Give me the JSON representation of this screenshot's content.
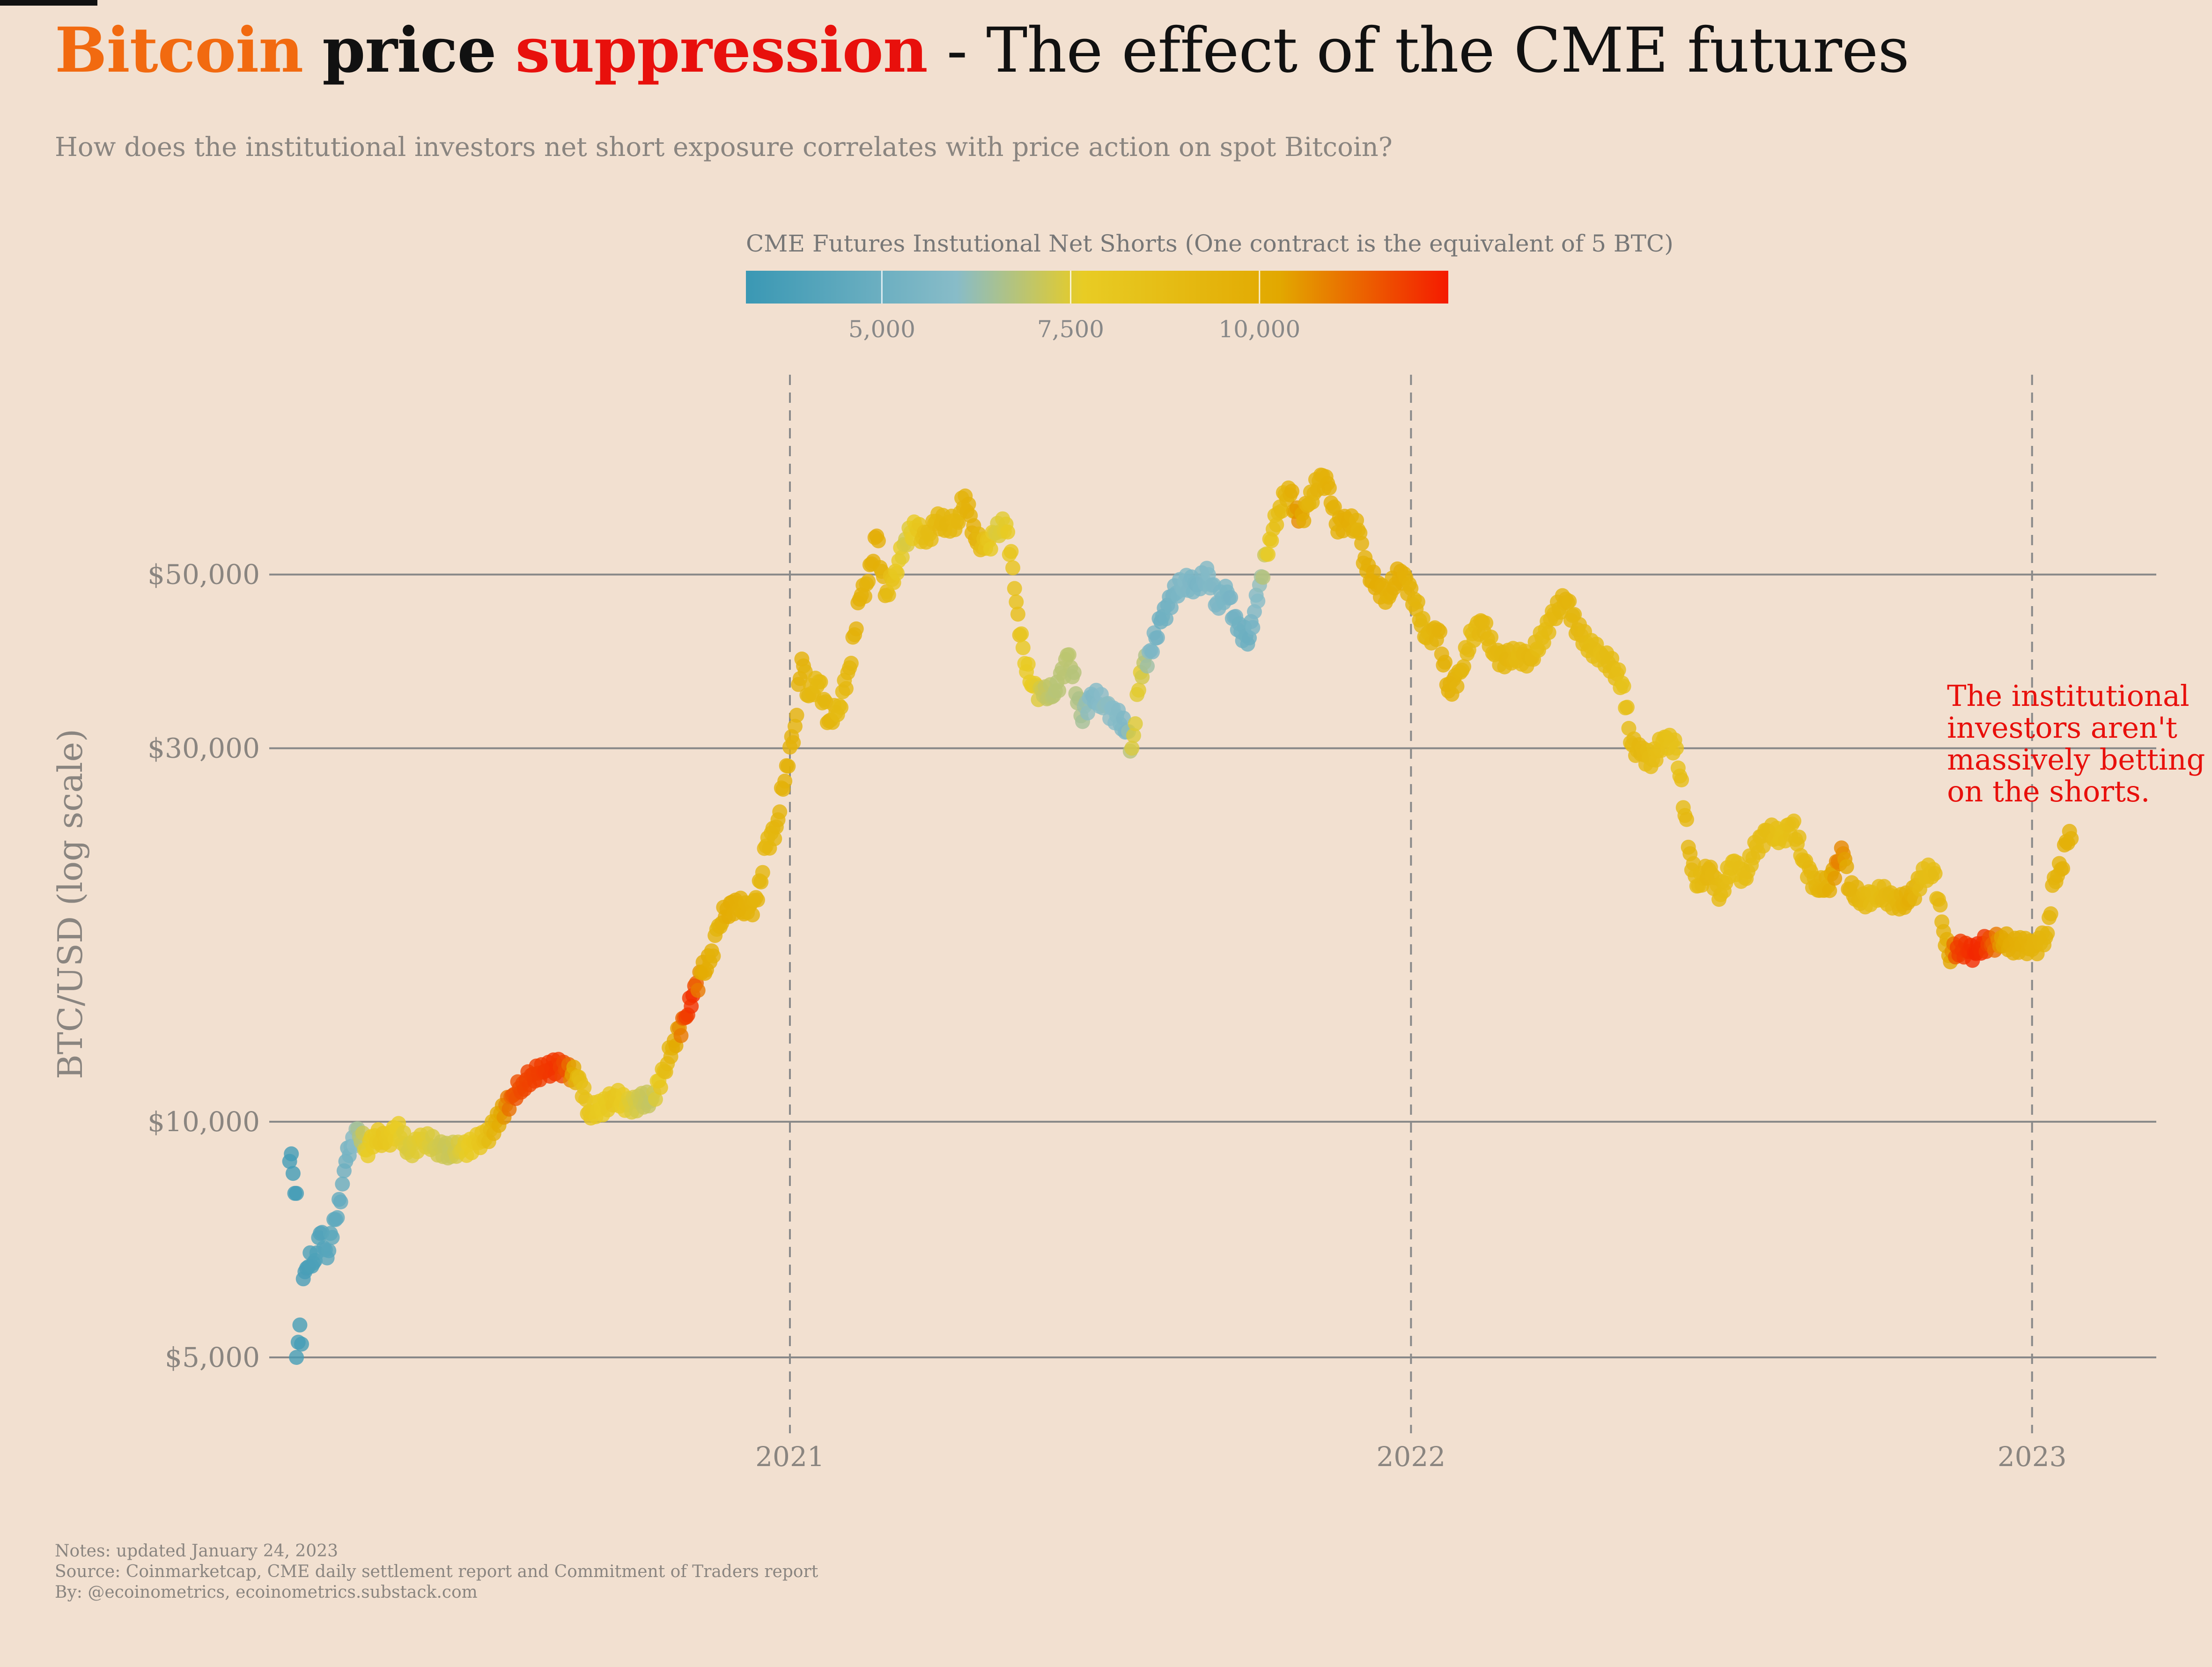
{
  "title": {
    "part1": "Bitcoin",
    "part2": "price",
    "part3": "suppression",
    "part4": "- The effect of the CME futures"
  },
  "subtitle": "How does the institutional investors net short exposure correlates with price action on spot Bitcoin?",
  "notes": [
    "Notes: updated January 24, 2023",
    "Source: Coinmarketcap, CME daily settlement report and Commitment of Traders report",
    "By: @ecoinometrics, ecoinometrics.substack.com"
  ],
  "colors": {
    "background": "#f2e0d0",
    "title_bitcoin": "#f26a10",
    "title_suppression": "#e8100c",
    "annotation": "#e8100c",
    "gridline": "#888888",
    "scale_low": "#3a98b4",
    "scale_light": "#88bcc8",
    "scale_mid": "#e8cc24",
    "scale_gold": "#e2a800",
    "scale_high": "#f51a00"
  },
  "chart_data": {
    "type": "scatter",
    "ylabel": "BTC/USD (log scale)",
    "y_scale": "log",
    "ylim": [
      4000,
      90000
    ],
    "xlim": [
      "2020-03-01",
      "2023-03-15"
    ],
    "x_ticks": [
      {
        "date": "2021-01-01",
        "label": "2021"
      },
      {
        "date": "2022-01-01",
        "label": "2022"
      },
      {
        "date": "2023-01-01",
        "label": "2023"
      }
    ],
    "y_ticks": [
      {
        "value": 5000,
        "label": "$5,000"
      },
      {
        "value": 10000,
        "label": "$10,000"
      },
      {
        "value": 30000,
        "label": "$30,000"
      },
      {
        "value": 50000,
        "label": "$50,000"
      }
    ],
    "vertical_dashed_lines_at": [
      "2021-01-01",
      "2022-01-01",
      "2023-01-01"
    ],
    "colorbar": {
      "title": "CME Futures Instutional Net Shorts (One contract is the equivalent of 5 BTC)",
      "range": [
        3200,
        12500
      ],
      "ticks": [
        {
          "value": 5000,
          "label": "5,000"
        },
        {
          "value": 7500,
          "label": "7,500"
        },
        {
          "value": 10000,
          "label": "10,000"
        }
      ]
    },
    "annotation": {
      "lines": [
        "The institutional",
        "investors aren't",
        "massively betting",
        "on the shorts."
      ],
      "date": "2022-11-01",
      "value": 31500
    },
    "points": [
      {
        "date": "2020-03-13",
        "price": 8900,
        "shorts": 3500
      },
      {
        "date": "2020-03-14",
        "price": 9100,
        "shorts": 3500
      },
      {
        "date": "2020-03-16",
        "price": 8100,
        "shorts": 3500
      },
      {
        "date": "2020-03-17",
        "price": 8100,
        "shorts": 3500
      },
      {
        "date": "2020-03-17",
        "price": 5000,
        "shorts": 3600
      },
      {
        "date": "2020-03-19",
        "price": 5500,
        "shorts": 3600
      },
      {
        "date": "2020-03-20",
        "price": 5200,
        "shorts": 3600
      },
      {
        "date": "2020-03-21",
        "price": 6300,
        "shorts": 3700
      },
      {
        "date": "2020-03-23",
        "price": 6500,
        "shorts": 3700
      },
      {
        "date": "2020-03-25",
        "price": 6800,
        "shorts": 3800
      },
      {
        "date": "2020-03-27",
        "price": 6600,
        "shorts": 3800
      },
      {
        "date": "2020-03-29",
        "price": 6800,
        "shorts": 3900
      },
      {
        "date": "2020-03-31",
        "price": 7200,
        "shorts": 4000
      },
      {
        "date": "2020-04-02",
        "price": 6900,
        "shorts": 4100
      },
      {
        "date": "2020-04-04",
        "price": 6700,
        "shorts": 4200
      },
      {
        "date": "2020-04-06",
        "price": 7200,
        "shorts": 4300
      },
      {
        "date": "2020-04-09",
        "price": 7500,
        "shorts": 4500
      },
      {
        "date": "2020-04-12",
        "price": 7900,
        "shorts": 4700
      },
      {
        "date": "2020-04-15",
        "price": 8900,
        "shorts": 5000
      },
      {
        "date": "2020-04-18",
        "price": 9300,
        "shorts": 5500
      },
      {
        "date": "2020-04-22",
        "price": 9800,
        "shorts": 6500
      },
      {
        "date": "2020-04-27",
        "price": 9200,
        "shorts": 7600
      },
      {
        "date": "2020-05-02",
        "price": 9600,
        "shorts": 7900
      },
      {
        "date": "2020-05-08",
        "price": 9400,
        "shorts": 8100
      },
      {
        "date": "2020-05-15",
        "price": 9800,
        "shorts": 7700
      },
      {
        "date": "2020-05-22",
        "price": 9200,
        "shorts": 7400
      },
      {
        "date": "2020-05-30",
        "price": 9500,
        "shorts": 7600
      },
      {
        "date": "2020-06-07",
        "price": 9300,
        "shorts": 7300
      },
      {
        "date": "2020-06-15",
        "price": 9200,
        "shorts": 7100
      },
      {
        "date": "2020-06-22",
        "price": 9200,
        "shorts": 7500
      },
      {
        "date": "2020-06-30",
        "price": 9400,
        "shorts": 7900
      },
      {
        "date": "2020-07-06",
        "price": 9500,
        "shorts": 8500
      },
      {
        "date": "2020-07-22",
        "price": 10800,
        "shorts": 11500
      },
      {
        "date": "2020-07-28",
        "price": 11200,
        "shorts": 11800
      },
      {
        "date": "2020-08-03",
        "price": 11500,
        "shorts": 11900
      },
      {
        "date": "2020-08-10",
        "price": 11600,
        "shorts": 12000
      },
      {
        "date": "2020-08-17",
        "price": 11800,
        "shorts": 12100
      },
      {
        "date": "2020-08-23",
        "price": 11600,
        "shorts": 11600
      },
      {
        "date": "2020-08-30",
        "price": 11400,
        "shorts": 8900
      },
      {
        "date": "2020-09-05",
        "price": 10300,
        "shorts": 8200
      },
      {
        "date": "2020-09-12",
        "price": 10400,
        "shorts": 7800
      },
      {
        "date": "2020-09-20",
        "price": 10800,
        "shorts": 8100
      },
      {
        "date": "2020-09-27",
        "price": 10500,
        "shorts": 7600
      },
      {
        "date": "2020-10-05",
        "price": 10600,
        "shorts": 7200
      },
      {
        "date": "2020-10-12",
        "price": 10700,
        "shorts": 7000
      },
      {
        "date": "2020-10-19",
        "price": 11600,
        "shorts": 8600
      },
      {
        "date": "2020-10-25",
        "price": 12700,
        "shorts": 9800
      },
      {
        "date": "2020-11-01",
        "price": 13600,
        "shorts": 11900
      },
      {
        "date": "2020-11-05",
        "price": 14500,
        "shorts": 12200
      },
      {
        "date": "2020-11-10",
        "price": 15500,
        "shorts": 10200
      },
      {
        "date": "2020-11-15",
        "price": 16000,
        "shorts": 9800
      },
      {
        "date": "2020-11-20",
        "price": 17800,
        "shorts": 9300
      },
      {
        "date": "2020-11-25",
        "price": 18700,
        "shorts": 10000
      },
      {
        "date": "2020-12-01",
        "price": 19000,
        "shorts": 9800
      },
      {
        "date": "2020-12-07",
        "price": 18500,
        "shorts": 9600
      },
      {
        "date": "2020-12-13",
        "price": 19200,
        "shorts": 9400
      },
      {
        "date": "2020-12-18",
        "price": 22500,
        "shorts": 9100
      },
      {
        "date": "2020-12-24",
        "price": 23800,
        "shorts": 9300
      },
      {
        "date": "2020-12-30",
        "price": 28500,
        "shorts": 9700
      },
      {
        "date": "2021-01-04",
        "price": 32000,
        "shorts": 9400
      },
      {
        "date": "2021-01-08",
        "price": 39000,
        "shorts": 9600
      },
      {
        "date": "2021-01-12",
        "price": 35000,
        "shorts": 9200
      },
      {
        "date": "2021-01-18",
        "price": 36500,
        "shorts": 9000
      },
      {
        "date": "2021-01-24",
        "price": 32500,
        "shorts": 9400
      },
      {
        "date": "2021-01-30",
        "price": 34000,
        "shorts": 8900
      },
      {
        "date": "2021-02-05",
        "price": 38000,
        "shorts": 9200
      },
      {
        "date": "2021-02-11",
        "price": 46500,
        "shorts": 9700
      },
      {
        "date": "2021-02-16",
        "price": 49000,
        "shorts": 9500
      },
      {
        "date": "2021-02-21",
        "price": 56000,
        "shorts": 9900
      },
      {
        "date": "2021-02-26",
        "price": 47000,
        "shorts": 9300
      },
      {
        "date": "2021-03-04",
        "price": 50500,
        "shorts": 8100
      },
      {
        "date": "2021-03-10",
        "price": 55500,
        "shorts": 7300
      },
      {
        "date": "2021-03-16",
        "price": 57500,
        "shorts": 7900
      },
      {
        "date": "2021-03-22",
        "price": 55000,
        "shorts": 8800
      },
      {
        "date": "2021-03-28",
        "price": 58500,
        "shorts": 9000
      },
      {
        "date": "2021-04-03",
        "price": 58000,
        "shorts": 9300
      },
      {
        "date": "2021-04-09",
        "price": 58500,
        "shorts": 9100
      },
      {
        "date": "2021-04-14",
        "price": 63000,
        "shorts": 9500
      },
      {
        "date": "2021-04-20",
        "price": 55500,
        "shorts": 9700
      },
      {
        "date": "2021-04-26",
        "price": 54000,
        "shorts": 8400
      },
      {
        "date": "2021-05-02",
        "price": 56500,
        "shorts": 7400
      },
      {
        "date": "2021-05-08",
        "price": 58000,
        "shorts": 7600
      },
      {
        "date": "2021-05-12",
        "price": 51000,
        "shorts": 8300
      },
      {
        "date": "2021-05-15",
        "price": 44500,
        "shorts": 8700
      },
      {
        "date": "2021-05-19",
        "price": 38500,
        "shorts": 7700
      },
      {
        "date": "2021-05-24",
        "price": 36000,
        "shorts": 7800
      },
      {
        "date": "2021-05-30",
        "price": 35000,
        "shorts": 7100
      },
      {
        "date": "2021-06-06",
        "price": 35500,
        "shorts": 6800
      },
      {
        "date": "2021-06-14",
        "price": 39500,
        "shorts": 6900
      },
      {
        "date": "2021-06-21",
        "price": 33000,
        "shorts": 6600
      },
      {
        "date": "2021-06-28",
        "price": 35000,
        "shorts": 5700
      },
      {
        "date": "2021-07-05",
        "price": 34000,
        "shorts": 6100
      },
      {
        "date": "2021-07-12",
        "price": 33000,
        "shorts": 5900
      },
      {
        "date": "2021-07-18",
        "price": 31500,
        "shorts": 5600
      },
      {
        "date": "2021-07-21",
        "price": 30000,
        "shorts": 7400
      },
      {
        "date": "2021-07-26",
        "price": 37500,
        "shorts": 7600
      },
      {
        "date": "2021-08-01",
        "price": 40000,
        "shorts": 5700
      },
      {
        "date": "2021-08-07",
        "price": 43500,
        "shorts": 5000
      },
      {
        "date": "2021-08-14",
        "price": 47000,
        "shorts": 5300
      },
      {
        "date": "2021-08-21",
        "price": 49000,
        "shorts": 5800
      },
      {
        "date": "2021-08-28",
        "price": 48500,
        "shorts": 5400
      },
      {
        "date": "2021-09-04",
        "price": 50000,
        "shorts": 5800
      },
      {
        "date": "2021-09-09",
        "price": 46000,
        "shorts": 5600
      },
      {
        "date": "2021-09-15",
        "price": 47500,
        "shorts": 5500
      },
      {
        "date": "2021-09-21",
        "price": 42500,
        "shorts": 5200
      },
      {
        "date": "2021-09-28",
        "price": 41500,
        "shorts": 5000
      },
      {
        "date": "2021-10-04",
        "price": 48500,
        "shorts": 6100
      },
      {
        "date": "2021-10-10",
        "price": 55500,
        "shorts": 8100
      },
      {
        "date": "2021-10-16",
        "price": 61000,
        "shorts": 8900
      },
      {
        "date": "2021-10-21",
        "price": 64500,
        "shorts": 9400
      },
      {
        "date": "2021-10-27",
        "price": 58500,
        "shorts": 10700
      },
      {
        "date": "2021-11-02",
        "price": 61500,
        "shorts": 9300
      },
      {
        "date": "2021-11-09",
        "price": 67000,
        "shorts": 9500
      },
      {
        "date": "2021-11-14",
        "price": 64500,
        "shorts": 9700
      },
      {
        "date": "2021-11-18",
        "price": 58000,
        "shorts": 9600
      },
      {
        "date": "2021-11-25",
        "price": 58500,
        "shorts": 9900
      },
      {
        "date": "2021-12-01",
        "price": 57000,
        "shorts": 9400
      },
      {
        "date": "2021-12-06",
        "price": 50500,
        "shorts": 9700
      },
      {
        "date": "2021-12-12",
        "price": 48500,
        "shorts": 10000
      },
      {
        "date": "2021-12-18",
        "price": 47000,
        "shorts": 9600
      },
      {
        "date": "2021-12-26",
        "price": 50500,
        "shorts": 9900
      },
      {
        "date": "2022-01-03",
        "price": 46500,
        "shorts": 9400
      },
      {
        "date": "2022-01-10",
        "price": 41500,
        "shorts": 9200
      },
      {
        "date": "2022-01-17",
        "price": 42500,
        "shorts": 9500
      },
      {
        "date": "2022-01-23",
        "price": 35500,
        "shorts": 9700
      },
      {
        "date": "2022-01-30",
        "price": 37500,
        "shorts": 9300
      },
      {
        "date": "2022-02-06",
        "price": 42000,
        "shorts": 8900
      },
      {
        "date": "2022-02-12",
        "price": 43500,
        "shorts": 9200
      },
      {
        "date": "2022-02-19",
        "price": 39500,
        "shorts": 9100
      },
      {
        "date": "2022-02-26",
        "price": 39000,
        "shorts": 9300
      },
      {
        "date": "2022-03-05",
        "price": 39500,
        "shorts": 9000
      },
      {
        "date": "2022-03-12",
        "price": 39000,
        "shorts": 9200
      },
      {
        "date": "2022-03-19",
        "price": 41500,
        "shorts": 8800
      },
      {
        "date": "2022-03-26",
        "price": 44500,
        "shorts": 9100
      },
      {
        "date": "2022-04-02",
        "price": 46500,
        "shorts": 9400
      },
      {
        "date": "2022-04-09",
        "price": 42500,
        "shorts": 9200
      },
      {
        "date": "2022-04-16",
        "price": 40500,
        "shorts": 8900
      },
      {
        "date": "2022-04-23",
        "price": 39500,
        "shorts": 8700
      },
      {
        "date": "2022-04-30",
        "price": 38000,
        "shorts": 8900
      },
      {
        "date": "2022-05-06",
        "price": 36000,
        "shorts": 8400
      },
      {
        "date": "2022-05-10",
        "price": 30500,
        "shorts": 9000
      },
      {
        "date": "2022-05-16",
        "price": 29500,
        "shorts": 9200
      },
      {
        "date": "2022-05-23",
        "price": 29000,
        "shorts": 8800
      },
      {
        "date": "2022-05-30",
        "price": 31000,
        "shorts": 8600
      },
      {
        "date": "2022-06-06",
        "price": 30000,
        "shorts": 8400
      },
      {
        "date": "2022-06-14",
        "price": 22000,
        "shorts": 9300
      },
      {
        "date": "2022-06-18",
        "price": 20000,
        "shorts": 8900
      },
      {
        "date": "2022-06-25",
        "price": 21000,
        "shorts": 9200
      },
      {
        "date": "2022-07-02",
        "price": 19500,
        "shorts": 9000
      },
      {
        "date": "2022-07-09",
        "price": 21500,
        "shorts": 8600
      },
      {
        "date": "2022-07-16",
        "price": 20500,
        "shorts": 8700
      },
      {
        "date": "2022-07-23",
        "price": 22500,
        "shorts": 8800
      },
      {
        "date": "2022-07-30",
        "price": 23500,
        "shorts": 8900
      },
      {
        "date": "2022-08-06",
        "price": 23000,
        "shorts": 8500
      },
      {
        "date": "2022-08-13",
        "price": 24000,
        "shorts": 8700
      },
      {
        "date": "2022-08-20",
        "price": 21500,
        "shorts": 9000
      },
      {
        "date": "2022-08-27",
        "price": 20000,
        "shorts": 9300
      },
      {
        "date": "2022-09-03",
        "price": 20000,
        "shorts": 9600
      },
      {
        "date": "2022-09-09",
        "price": 21500,
        "shorts": 10900
      },
      {
        "date": "2022-09-12",
        "price": 22000,
        "shorts": 10700
      },
      {
        "date": "2022-09-16",
        "price": 19800,
        "shorts": 9600
      },
      {
        "date": "2022-09-23",
        "price": 19200,
        "shorts": 9200
      },
      {
        "date": "2022-09-30",
        "price": 19500,
        "shorts": 8800
      },
      {
        "date": "2022-10-07",
        "price": 19500,
        "shorts": 9100
      },
      {
        "date": "2022-10-14",
        "price": 19000,
        "shorts": 9300
      },
      {
        "date": "2022-10-21",
        "price": 19200,
        "shorts": 9800
      },
      {
        "date": "2022-10-28",
        "price": 20500,
        "shorts": 8800
      },
      {
        "date": "2022-11-04",
        "price": 21000,
        "shorts": 8700
      },
      {
        "date": "2022-11-09",
        "price": 18000,
        "shorts": 9300
      },
      {
        "date": "2022-11-13",
        "price": 16300,
        "shorts": 9900
      },
      {
        "date": "2022-11-18",
        "price": 16700,
        "shorts": 11900
      },
      {
        "date": "2022-11-24",
        "price": 16500,
        "shorts": 12100
      },
      {
        "date": "2022-11-29",
        "price": 16400,
        "shorts": 12300
      },
      {
        "date": "2022-12-03",
        "price": 16900,
        "shorts": 12200
      },
      {
        "date": "2022-12-08",
        "price": 16800,
        "shorts": 11600
      },
      {
        "date": "2022-12-14",
        "price": 17200,
        "shorts": 10400
      },
      {
        "date": "2022-12-20",
        "price": 16800,
        "shorts": 9900
      },
      {
        "date": "2022-12-26",
        "price": 16850,
        "shorts": 9700
      },
      {
        "date": "2023-01-01",
        "price": 16600,
        "shorts": 9500
      },
      {
        "date": "2023-01-06",
        "price": 16900,
        "shorts": 9400
      },
      {
        "date": "2023-01-10",
        "price": 17400,
        "shorts": 9300
      },
      {
        "date": "2023-01-14",
        "price": 20500,
        "shorts": 9400
      },
      {
        "date": "2023-01-18",
        "price": 21000,
        "shorts": 9500
      },
      {
        "date": "2023-01-21",
        "price": 22800,
        "shorts": 9700
      },
      {
        "date": "2023-01-24",
        "price": 23000,
        "shorts": 9600
      }
    ]
  }
}
